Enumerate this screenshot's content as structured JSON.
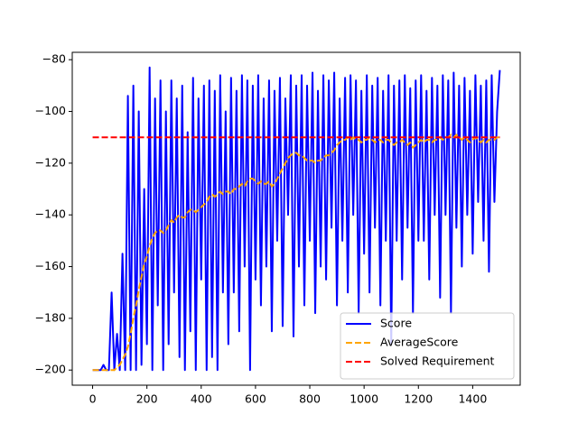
{
  "chart_data": {
    "type": "line",
    "x": [
      0,
      10,
      20,
      30,
      40,
      50,
      60,
      70,
      80,
      90,
      100,
      110,
      120,
      130,
      140,
      150,
      160,
      170,
      180,
      190,
      200,
      210,
      220,
      230,
      240,
      250,
      260,
      270,
      280,
      290,
      300,
      310,
      320,
      330,
      340,
      350,
      360,
      370,
      380,
      390,
      400,
      410,
      420,
      430,
      440,
      450,
      460,
      470,
      480,
      490,
      500,
      510,
      520,
      530,
      540,
      550,
      560,
      570,
      580,
      590,
      600,
      610,
      620,
      630,
      640,
      650,
      660,
      670,
      680,
      690,
      700,
      710,
      720,
      730,
      740,
      750,
      760,
      770,
      780,
      790,
      800,
      810,
      820,
      830,
      840,
      850,
      860,
      870,
      880,
      890,
      900,
      910,
      920,
      930,
      940,
      950,
      960,
      970,
      980,
      990,
      1000,
      1010,
      1020,
      1030,
      1040,
      1050,
      1060,
      1070,
      1080,
      1090,
      1100,
      1110,
      1120,
      1130,
      1140,
      1150,
      1160,
      1170,
      1180,
      1190,
      1200,
      1210,
      1220,
      1230,
      1240,
      1250,
      1260,
      1270,
      1280,
      1290,
      1300,
      1310,
      1320,
      1330,
      1340,
      1350,
      1360,
      1370,
      1380,
      1390,
      1400,
      1410,
      1420,
      1430,
      1440,
      1450,
      1460,
      1470,
      1480,
      1490,
      1500
    ],
    "series": [
      {
        "name": "Score",
        "color": "#0000ff",
        "dash": false,
        "values": [
          -200,
          -200,
          -200,
          -200,
          -198,
          -200,
          -200,
          -170,
          -200,
          -186,
          -200,
          -155,
          -200,
          -94,
          -200,
          -90,
          -200,
          -100,
          -198,
          -130,
          -190,
          -83,
          -200,
          -95,
          -175,
          -88,
          -200,
          -100,
          -190,
          -88,
          -170,
          -95,
          -195,
          -90,
          -200,
          -108,
          -185,
          -87,
          -200,
          -95,
          -165,
          -90,
          -200,
          -88,
          -195,
          -92,
          -200,
          -86,
          -170,
          -100,
          -190,
          -87,
          -170,
          -92,
          -185,
          -86,
          -160,
          -88,
          -200,
          -90,
          -165,
          -86,
          -175,
          -95,
          -160,
          -88,
          -185,
          -92,
          -150,
          -87,
          -183,
          -95,
          -140,
          -86,
          -187,
          -90,
          -160,
          -86,
          -175,
          -90,
          -150,
          -85,
          -178,
          -92,
          -160,
          -86,
          -165,
          -88,
          -145,
          -85,
          -175,
          -95,
          -150,
          -87,
          -170,
          -86,
          -140,
          -88,
          -178,
          -92,
          -155,
          -86,
          -170,
          -90,
          -145,
          -87,
          -175,
          -92,
          -150,
          -86,
          -190,
          -90,
          -150,
          -88,
          -165,
          -86,
          -145,
          -91,
          -178,
          -88,
          -150,
          -86,
          -150,
          -92,
          -165,
          -87,
          -140,
          -90,
          -172,
          -86,
          -140,
          -88,
          -178,
          -85,
          -145,
          -90,
          -160,
          -87,
          -140,
          -92,
          -155,
          -86,
          -135,
          -90,
          -150,
          -88,
          -162,
          -86,
          -135,
          -100,
          -84
        ]
      },
      {
        "name": "AverageScore",
        "color": "orange",
        "dash": true,
        "values": [
          -200,
          -200,
          -200,
          -200,
          -200,
          -200,
          -200,
          -200,
          -200,
          -199,
          -198,
          -196,
          -194,
          -191,
          -186,
          -180,
          -175,
          -169,
          -164,
          -159,
          -156,
          -152,
          -149,
          -147,
          -146,
          -146,
          -147,
          -146,
          -144,
          -142,
          -143,
          -141,
          -140,
          -141,
          -141,
          -139,
          -138,
          -138,
          -139,
          -138,
          -137,
          -136,
          -135,
          -133,
          -132,
          -133,
          -132,
          -131,
          -132,
          -131,
          -131,
          -132,
          -130,
          -130,
          -129,
          -128,
          -129,
          -127,
          -126,
          -126,
          -127,
          -128,
          -127,
          -128,
          -128,
          -127,
          -129,
          -128,
          -126,
          -124,
          -122,
          -120,
          -118,
          -117,
          -116,
          -116,
          -117,
          -117,
          -118,
          -119,
          -119,
          -119,
          -120,
          -119,
          -119,
          -118,
          -117,
          -117,
          -116,
          -115,
          -113,
          -112,
          -111,
          -111,
          -110,
          -111,
          -110,
          -111,
          -111,
          -112,
          -111,
          -111,
          -110,
          -111,
          -112,
          -111,
          -111,
          -112,
          -111,
          -111,
          -112,
          -113,
          -112,
          -112,
          -111,
          -112,
          -113,
          -112,
          -114,
          -113,
          -112,
          -111,
          -112,
          -111,
          -111,
          -112,
          -111,
          -111,
          -110,
          -111,
          -110,
          -110,
          -109,
          -110,
          -109,
          -110,
          -111,
          -110,
          -111,
          -112,
          -111,
          -110,
          -111,
          -112,
          -111,
          -112,
          -111,
          -111,
          -111,
          -110,
          -110
        ]
      },
      {
        "name": "Solved Requirement",
        "color": "#ff0000",
        "dash": true,
        "x": [
          0,
          1500
        ],
        "values": [
          -110,
          -110
        ]
      }
    ],
    "xlim": [
      -75,
      1575
    ],
    "ylim": [
      -205.85,
      -77.15
    ],
    "xticks": [
      0,
      200,
      400,
      600,
      800,
      1000,
      1200,
      1400
    ],
    "yticks": [
      {
        "value": -200,
        "label": "−200"
      },
      {
        "value": -180,
        "label": "−180"
      },
      {
        "value": -160,
        "label": "−160"
      },
      {
        "value": -140,
        "label": "−140"
      },
      {
        "value": -120,
        "label": "−120"
      },
      {
        "value": -100,
        "label": "−100"
      },
      {
        "value": -80,
        "label": "−80"
      }
    ],
    "legend": "lower right",
    "grid": false
  }
}
